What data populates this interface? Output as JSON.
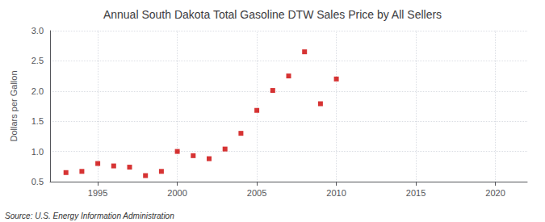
{
  "chart_data": {
    "type": "scatter",
    "title": "Annual South Dakota Total Gasoline DTW Sales Price by All Sellers",
    "ylabel": "Dollars per Gallon",
    "annotations": [
      "Source: U.S. Energy Information Administration"
    ],
    "x": [
      1993,
      1994,
      1995,
      1996,
      1997,
      1998,
      1999,
      2000,
      2001,
      2002,
      2003,
      2004,
      2005,
      2006,
      2007,
      2008,
      2009,
      2010
    ],
    "values": [
      0.65,
      0.67,
      0.8,
      0.76,
      0.74,
      0.6,
      0.67,
      1.0,
      0.93,
      0.88,
      1.04,
      1.3,
      1.68,
      2.01,
      2.25,
      2.65,
      1.79,
      2.2
    ],
    "color": "#cc0000",
    "marker": "square",
    "xlim": [
      1992,
      2022
    ],
    "ylim": [
      0.5,
      3.0
    ],
    "xticks": [
      1995,
      2000,
      2005,
      2010,
      2015,
      2020
    ],
    "yticks": [
      0.5,
      {
        "value": 1.0,
        "label": "1.0"
      },
      1.5,
      {
        "value": 2.0,
        "label": "2.0"
      },
      2.5,
      {
        "value": 3.0,
        "label": "3.0"
      }
    ],
    "grid": true
  }
}
